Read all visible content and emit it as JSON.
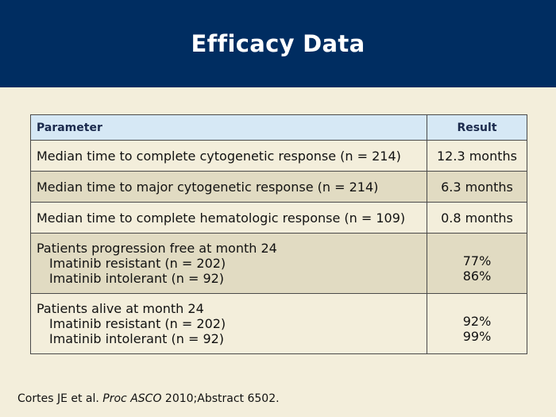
{
  "title": "Efficacy Data",
  "table": {
    "headers": {
      "parameter": "Parameter",
      "result": "Result"
    },
    "rows": [
      {
        "parameter": "Median time to complete cytogenetic response (n = 214)",
        "result": "12.3 months"
      },
      {
        "parameter": "Median time to major cytogenetic response (n = 214)",
        "result": "6.3 months"
      },
      {
        "parameter": "Median time to complete hematologic response (n = 109)",
        "result": "0.8 months"
      },
      {
        "parameter": "Patients progression free at month 24",
        "sub": [
          "Imatinib resistant (n = 202)",
          "Imatinib intolerant (n = 92)"
        ],
        "results": [
          "77%",
          "86%"
        ]
      },
      {
        "parameter": "Patients alive at month 24",
        "sub": [
          "Imatinib resistant (n = 202)",
          "Imatinib intolerant (n = 92)"
        ],
        "results": [
          "92%",
          "99%"
        ]
      }
    ]
  },
  "citation": {
    "authors": "Cortes JE et al.",
    "journal": "Proc ASCO",
    "rest": "2010;Abstract 6502."
  }
}
